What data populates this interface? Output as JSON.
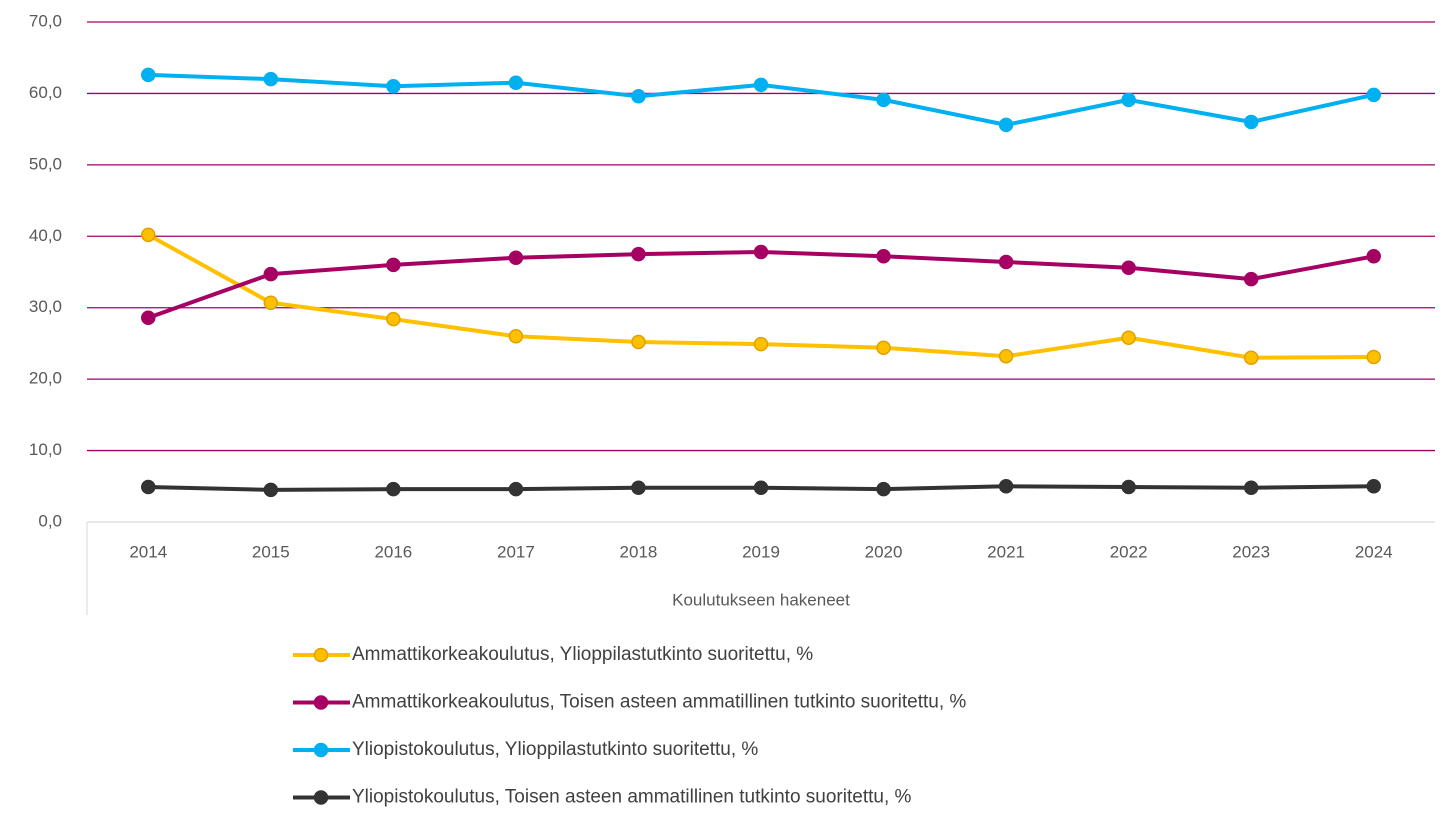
{
  "chart_data": {
    "type": "line",
    "x_label": "Koulutukseen hakeneet",
    "categories": [
      "2014",
      "2015",
      "2016",
      "2017",
      "2018",
      "2019",
      "2020",
      "2021",
      "2022",
      "2023",
      "2024"
    ],
    "series": [
      {
        "name": "Ammattikorkeakoulutus, Ylioppilastutkinto suoritettu, %",
        "color": "#ffc000",
        "values": [
          40.2,
          30.7,
          28.4,
          26.0,
          25.2,
          24.9,
          24.4,
          23.2,
          25.8,
          23.0,
          23.1
        ]
      },
      {
        "name": "Ammattikorkeakoulutus, Toisen asteen ammatillinen tutkinto suoritettu, %",
        "color": "#a50062",
        "values": [
          28.6,
          34.7,
          36.0,
          37.0,
          37.5,
          37.8,
          37.2,
          36.4,
          35.6,
          34.0,
          37.2
        ]
      },
      {
        "name": "Yliopistokoulutus, Ylioppilastutkinto suoritettu, %",
        "color": "#00b0f0",
        "values": [
          62.6,
          62.0,
          61.0,
          61.5,
          59.6,
          61.2,
          59.1,
          55.6,
          59.1,
          56.0,
          59.8
        ]
      },
      {
        "name": "Yliopistokoulutus, Toisen asteen ammatillinen tutkinto suoritettu, %",
        "color": "#333333",
        "values": [
          4.9,
          4.5,
          4.6,
          4.6,
          4.8,
          4.8,
          4.6,
          5.0,
          4.9,
          4.8,
          5.0
        ]
      }
    ],
    "ylim": [
      0,
      70
    ],
    "yticks": [
      {
        "value": 0,
        "label": "0,0"
      },
      {
        "value": 10,
        "label": "10,0"
      },
      {
        "value": 20,
        "label": "20,0"
      },
      {
        "value": 30,
        "label": "30,0"
      },
      {
        "value": 40,
        "label": "40,0"
      },
      {
        "value": 50,
        "label": "50,0"
      },
      {
        "value": 60,
        "label": "60,0"
      },
      {
        "value": 70,
        "label": "70,0"
      }
    ],
    "grid": true
  }
}
